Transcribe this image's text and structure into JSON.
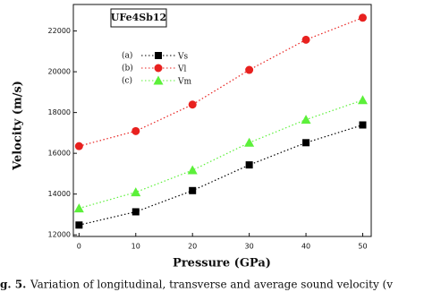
{
  "chart_data": {
    "type": "line",
    "formula": "UFe4Sb12",
    "xlabel": "Pressure (GPa)",
    "ylabel": "Velocity (m/s)",
    "caption_prefix": "g. 5.",
    "caption": "Variation of longitudinal, transverse and average sound velocity (v",
    "x": [
      0,
      10,
      20,
      30,
      40,
      50
    ],
    "series": [
      {
        "label": "(a)",
        "name": "Vs",
        "color": "#000000",
        "marker": "square",
        "values": [
          12480,
          13130,
          14170,
          15430,
          16520,
          17390
        ]
      },
      {
        "label": "(b)",
        "name": "Vl",
        "color": "#e8211f",
        "marker": "circle",
        "values": [
          16350,
          17090,
          18390,
          20090,
          21570,
          22650
        ]
      },
      {
        "label": "(c)",
        "name": "Vm",
        "color": "#5cf03a",
        "marker": "triangle",
        "values": [
          13300,
          14090,
          15170,
          16520,
          17650,
          18610
        ]
      }
    ],
    "xlim": [
      -1,
      51.5
    ],
    "xticks": [
      0,
      10,
      20,
      30,
      40,
      50
    ],
    "ylim": [
      11920,
      23300
    ],
    "yticks": [
      12000,
      14000,
      16000,
      18000,
      20000,
      22000
    ]
  }
}
